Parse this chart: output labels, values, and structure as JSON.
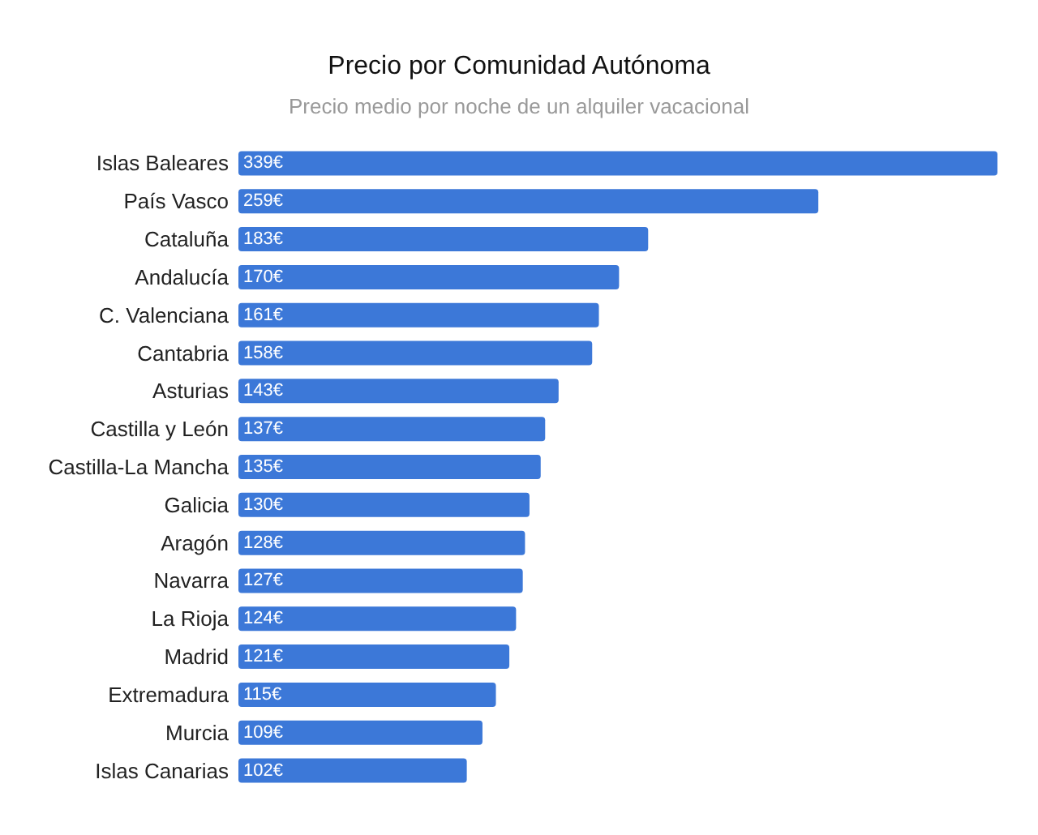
{
  "chart_data": {
    "type": "bar",
    "orientation": "horizontal",
    "title": "Precio por Comunidad Autónoma",
    "subtitle": "Precio medio por noche de un alquiler vacacional",
    "categories": [
      "Islas Baleares",
      "País Vasco",
      "Cataluña",
      "Andalucía",
      "C. Valenciana",
      "Cantabria",
      "Asturias",
      "Castilla y León",
      "Castilla-La Mancha",
      "Galicia",
      "Aragón",
      "Navarra",
      "La Rioja",
      "Madrid",
      "Extremadura",
      "Murcia",
      "Islas Canarias"
    ],
    "values": [
      339,
      259,
      183,
      170,
      161,
      158,
      143,
      137,
      135,
      130,
      128,
      127,
      124,
      121,
      115,
      109,
      102
    ],
    "value_labels": [
      "339€",
      "259€",
      "183€",
      "170€",
      "161€",
      "158€",
      "143€",
      "137€",
      "135€",
      "130€",
      "128€",
      "127€",
      "124€",
      "121€",
      "115€",
      "109€",
      "102€"
    ],
    "color": "#3c78d8",
    "tick_labels": "y"
  }
}
